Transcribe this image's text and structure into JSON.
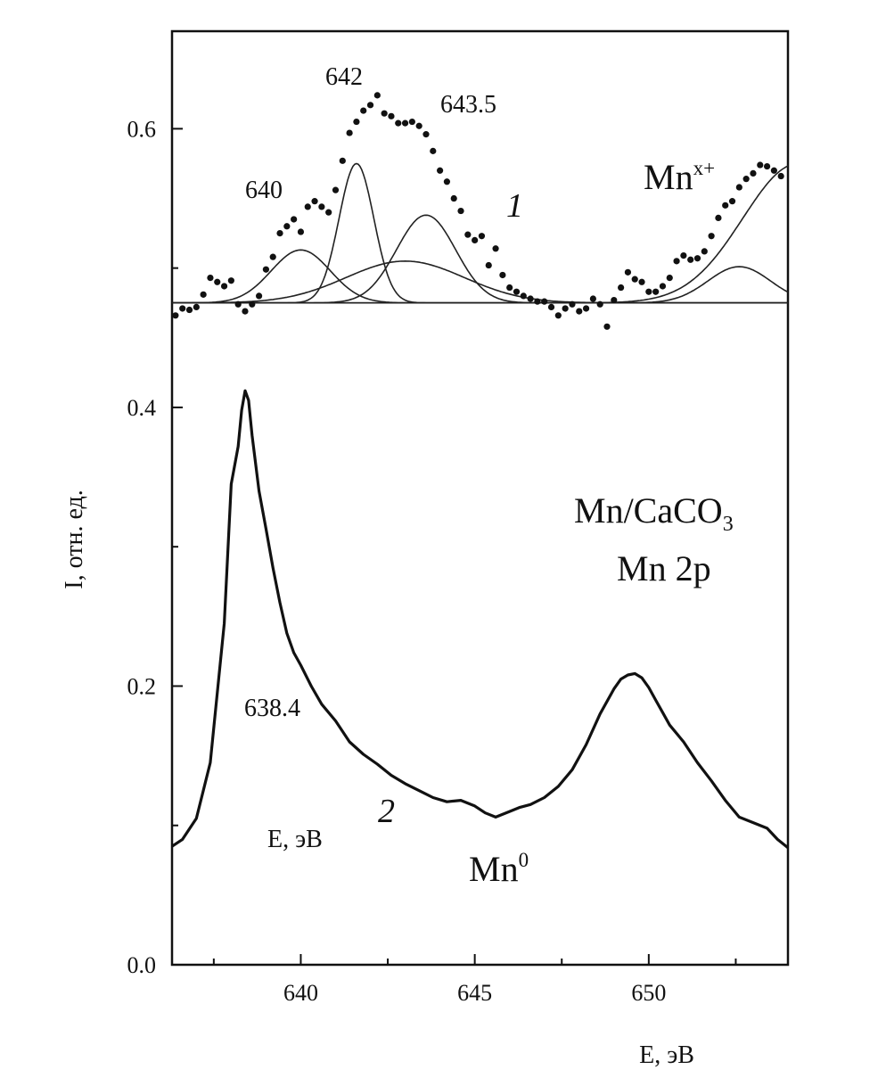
{
  "chart_data": {
    "type": "line",
    "xlabel": "E, эВ",
    "ylabel": "I, отн. ед.",
    "xlim": [
      636.3,
      654
    ],
    "ylim": [
      0.0,
      0.67
    ],
    "x_ticks_major": [
      "640",
      "645",
      "650"
    ],
    "x_ticks_major_values": [
      640,
      645,
      650
    ],
    "x_ticks_minor_values": [
      637.5,
      642.5,
      647.5,
      652.5
    ],
    "y_ticks_major": [
      "0.0",
      "0.2",
      "0.4",
      "0.6"
    ],
    "y_ticks_major_values": [
      0.0,
      0.2,
      0.4,
      0.6
    ],
    "y_ticks_minor_values": [
      0.1,
      0.3,
      0.5
    ],
    "grid": false,
    "annotations": {
      "peak_640": "640",
      "peak_642": "642",
      "peak_643_5": "643.5",
      "peak_638_4": "638.4",
      "curve1_label": "1",
      "curve2_label": "2",
      "mn_x_base": "Mn",
      "mn_x_sup": "x+",
      "mn0_base": "Mn",
      "mn0_sup": "0",
      "sample_base": "Mn/CaCO",
      "sample_sub": "3",
      "level": "Mn 2p",
      "inner_energy_label": "E, эВ"
    },
    "series": [
      {
        "id": "1",
        "kind": "points",
        "x": [
          636.4,
          636.6,
          636.8,
          637.0,
          637.2,
          637.4,
          637.6,
          637.8,
          638.0,
          638.2,
          638.4,
          638.6,
          638.8,
          639.0,
          639.2,
          639.4,
          639.6,
          639.8,
          640.0,
          640.2,
          640.4,
          640.6,
          640.8,
          641.0,
          641.2,
          641.4,
          641.6,
          641.8,
          642.0,
          642.2,
          642.4,
          642.6,
          642.8,
          643.0,
          643.2,
          643.4,
          643.6,
          643.8,
          644.0,
          644.2,
          644.4,
          644.6,
          644.8,
          645.0,
          645.2,
          645.4,
          645.6,
          645.8,
          646.0,
          646.2,
          646.4,
          646.6,
          646.8,
          647.0,
          647.2,
          647.4,
          647.6,
          647.8,
          648.0,
          648.2,
          648.4,
          648.6,
          648.8,
          649.0,
          649.2,
          649.4,
          649.6,
          649.8,
          650.0,
          650.2,
          650.4,
          650.6,
          650.8,
          651.0,
          651.2,
          651.4,
          651.6,
          651.8,
          652.0,
          652.2,
          652.4,
          652.6,
          652.8,
          653.0,
          653.2,
          653.4,
          653.6,
          653.8
        ],
        "y": [
          0.466,
          0.471,
          0.47,
          0.472,
          0.481,
          0.493,
          0.49,
          0.487,
          0.491,
          0.474,
          0.469,
          0.474,
          0.48,
          0.499,
          0.508,
          0.525,
          0.53,
          0.535,
          0.526,
          0.544,
          0.548,
          0.544,
          0.54,
          0.556,
          0.577,
          0.597,
          0.605,
          0.613,
          0.617,
          0.624,
          0.611,
          0.609,
          0.604,
          0.604,
          0.605,
          0.602,
          0.596,
          0.584,
          0.57,
          0.562,
          0.55,
          0.541,
          0.524,
          0.52,
          0.523,
          0.502,
          0.514,
          0.495,
          0.486,
          0.483,
          0.48,
          0.478,
          0.476,
          0.476,
          0.472,
          0.466,
          0.471,
          0.474,
          0.469,
          0.471,
          0.478,
          0.474,
          0.458,
          0.477,
          0.486,
          0.497,
          0.492,
          0.49,
          0.483,
          0.483,
          0.487,
          0.493,
          0.505,
          0.509,
          0.506,
          0.507,
          0.512,
          0.523,
          0.536,
          0.545,
          0.548,
          0.558,
          0.564,
          0.568,
          0.574,
          0.573,
          0.57,
          0.566
        ]
      },
      {
        "id": "baseline",
        "kind": "line",
        "x": [
          636.3,
          654.0
        ],
        "y": [
          0.475,
          0.475
        ]
      },
      {
        "id": "fit-640",
        "kind": "gaussian",
        "center": 640.0,
        "height": 0.038,
        "sigma": 0.85,
        "baseline": 0.475
      },
      {
        "id": "fit-642",
        "kind": "gaussian",
        "center": 641.6,
        "height": 0.1,
        "sigma": 0.5,
        "baseline": 0.475
      },
      {
        "id": "fit-643.5",
        "kind": "gaussian",
        "center": 643.6,
        "height": 0.063,
        "sigma": 0.85,
        "baseline": 0.475
      },
      {
        "id": "fit-643-broad",
        "kind": "gaussian",
        "center": 643.0,
        "height": 0.03,
        "sigma": 1.7,
        "baseline": 0.475
      },
      {
        "id": "fit-652.5",
        "kind": "gaussian",
        "center": 652.6,
        "height": 0.026,
        "sigma": 0.9,
        "baseline": 0.475
      },
      {
        "id": "fit-654",
        "kind": "gaussian",
        "center": 654.3,
        "height": 0.1,
        "sigma": 1.6,
        "baseline": 0.475
      },
      {
        "id": "2",
        "kind": "line",
        "x": [
          636.3,
          636.6,
          637.0,
          637.4,
          637.8,
          638.0,
          638.2,
          638.3,
          638.4,
          638.5,
          638.6,
          638.8,
          639.0,
          639.2,
          639.4,
          639.6,
          639.8,
          640.0,
          640.3,
          640.6,
          641.0,
          641.4,
          641.8,
          642.2,
          642.6,
          643.0,
          643.4,
          643.8,
          644.2,
          644.6,
          645.0,
          645.3,
          645.6,
          646.0,
          646.3,
          646.6,
          647.0,
          647.4,
          647.8,
          648.2,
          648.6,
          649.0,
          649.2,
          649.4,
          649.6,
          649.8,
          650.0,
          650.2,
          650.4,
          650.6,
          651.0,
          651.4,
          651.8,
          652.2,
          652.6,
          653.0,
          653.4,
          653.7,
          654.0
        ],
        "y": [
          0.085,
          0.09,
          0.105,
          0.145,
          0.245,
          0.345,
          0.372,
          0.398,
          0.412,
          0.405,
          0.38,
          0.34,
          0.313,
          0.285,
          0.26,
          0.238,
          0.224,
          0.215,
          0.2,
          0.187,
          0.175,
          0.16,
          0.151,
          0.144,
          0.136,
          0.13,
          0.125,
          0.12,
          0.117,
          0.118,
          0.114,
          0.109,
          0.106,
          0.11,
          0.113,
          0.115,
          0.12,
          0.128,
          0.14,
          0.158,
          0.18,
          0.198,
          0.205,
          0.208,
          0.209,
          0.206,
          0.199,
          0.19,
          0.181,
          0.172,
          0.16,
          0.145,
          0.132,
          0.118,
          0.106,
          0.102,
          0.098,
          0.09,
          0.084
        ]
      }
    ]
  }
}
